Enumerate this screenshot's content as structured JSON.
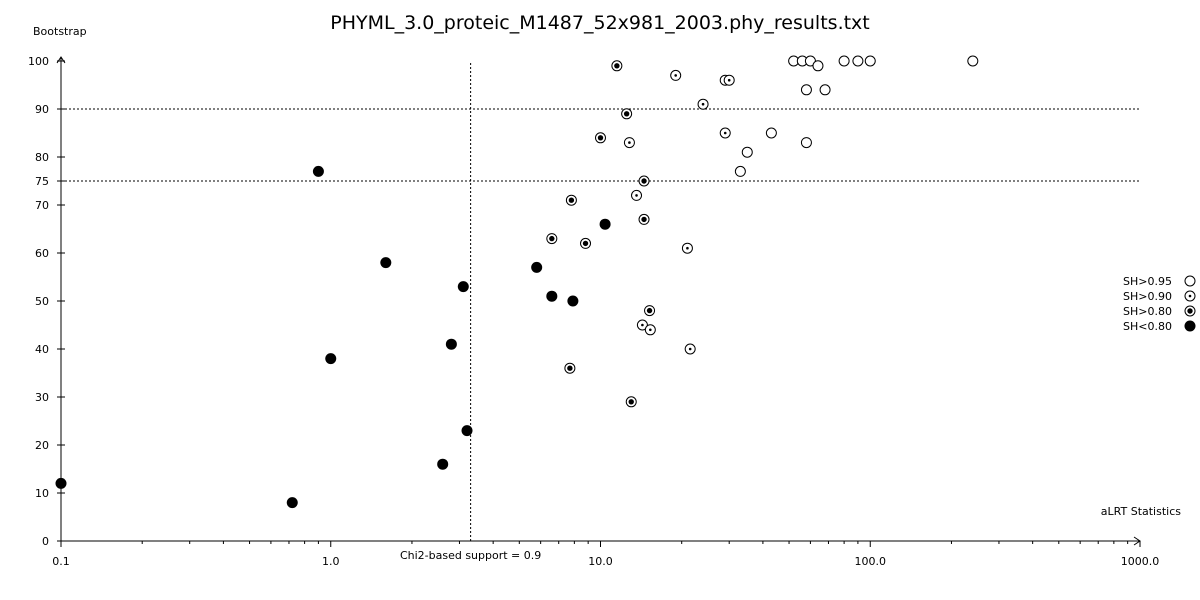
{
  "chart_data": {
    "type": "scatter",
    "title": "PHYML_3.0_proteic_M1487_52x981_2003.phy_results.txt",
    "xlabel": "aLRT Statistics",
    "ylabel": "Bootstrap",
    "xscale": "log",
    "xlim": [
      0.1,
      1000.0
    ],
    "ylim": [
      0,
      100
    ],
    "x_ticks": [
      "0.1",
      "1.0",
      "10.0",
      "100.0",
      "1000.0"
    ],
    "y_ticks": [
      0,
      10,
      20,
      30,
      40,
      50,
      60,
      70,
      75,
      80,
      90,
      100
    ],
    "reference_lines": {
      "horizontal": [
        75,
        90
      ],
      "vertical": {
        "x": 3.3,
        "label": "Chi2-based support = 0.9"
      }
    },
    "legend_position": "right",
    "series": [
      {
        "name": "SH>0.95",
        "style": "open",
        "points": [
          [
            52,
            100
          ],
          [
            56,
            100
          ],
          [
            60,
            100
          ],
          [
            64,
            99
          ],
          [
            80,
            100
          ],
          [
            90,
            100
          ],
          [
            100,
            100
          ],
          [
            240,
            100
          ],
          [
            58,
            94
          ],
          [
            68,
            94
          ],
          [
            43,
            85
          ],
          [
            58,
            83
          ],
          [
            35,
            81
          ],
          [
            33,
            77
          ]
        ]
      },
      {
        "name": "SH>0.90",
        "style": "dot",
        "points": [
          [
            19,
            97
          ],
          [
            29,
            96
          ],
          [
            30,
            96
          ],
          [
            24,
            91
          ],
          [
            29,
            85
          ],
          [
            12.8,
            83
          ],
          [
            13.6,
            72
          ],
          [
            21,
            61
          ],
          [
            14.3,
            45
          ],
          [
            15.3,
            44
          ],
          [
            21.5,
            40
          ]
        ]
      },
      {
        "name": "SH>0.80",
        "style": "ring",
        "points": [
          [
            11.5,
            99
          ],
          [
            12.5,
            89
          ],
          [
            10,
            84
          ],
          [
            14.5,
            75
          ],
          [
            7.8,
            71
          ],
          [
            14.5,
            67
          ],
          [
            6.6,
            63
          ],
          [
            8.8,
            62
          ],
          [
            15.2,
            48
          ],
          [
            7.7,
            36
          ],
          [
            13,
            29
          ]
        ]
      },
      {
        "name": "SH<0.80",
        "style": "filled",
        "points": [
          [
            0.1,
            12
          ],
          [
            0.9,
            77
          ],
          [
            0.72,
            8
          ],
          [
            1.0,
            38
          ],
          [
            1.6,
            58
          ],
          [
            2.6,
            16
          ],
          [
            2.8,
            41
          ],
          [
            3.1,
            53
          ],
          [
            3.2,
            23
          ],
          [
            5.8,
            57
          ],
          [
            6.6,
            51
          ],
          [
            7.9,
            50
          ],
          [
            10.4,
            66
          ]
        ]
      }
    ]
  }
}
